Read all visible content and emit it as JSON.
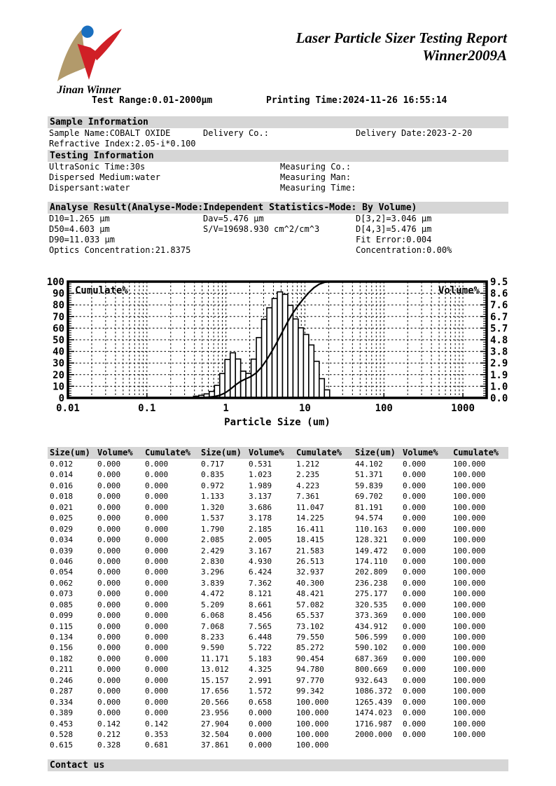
{
  "header": {
    "logo_text": "Jinan Winner",
    "title_line1": "Laser Particle Sizer Testing Report",
    "title_line2": "Winner2009A",
    "test_range": "Test Range:0.01-2000μm",
    "printing_time": "Printing Time:2024-11-26 16:55:14",
    "logo_colors": {
      "tan": "#b29a6b",
      "blue": "#1a6fbf",
      "red": "#d01f26"
    }
  },
  "sample_info": {
    "title": "Sample Information",
    "row1": [
      "Sample Name:COBALT OXIDE",
      "Delivery Co.:",
      "Delivery Date:2023-2-20"
    ],
    "row2": "Refractive Index:2.05-i*0.100"
  },
  "testing_info": {
    "title": "Testing Information",
    "left": [
      "UltraSonic Time:30s",
      "Dispersed Medium:water",
      "Dispersant:water"
    ],
    "right": [
      "Measuring Co.:",
      "Measuring Man:",
      "Measuring Time:"
    ]
  },
  "analyse_result": {
    "title": "Analyse Result(Analyse-Mode:Independent  Statistics-Mode: By Volume)",
    "col1": [
      "D10=1.265 μm",
      "D50=4.603 μm",
      "D90=11.033 μm",
      "Optics Concentration:21.8375"
    ],
    "col2": [
      "Dav=5.476 μm",
      "S/V=19698.930 cm^2/cm^3",
      "",
      ""
    ],
    "col3": [
      "D[3,2]=3.046 μm",
      "D[4,3]=5.476 μm",
      "Fit Error:0.004",
      "Concentration:0.00%"
    ]
  },
  "chart": {
    "left_axis_label": "Cumulate%",
    "right_axis_label": "Volume%",
    "x_axis_label": "Particle Size (um)",
    "left_ticks": [
      "0",
      "10",
      "20",
      "30",
      "40",
      "50",
      "60",
      "70",
      "80",
      "90",
      "100"
    ],
    "right_ticks": [
      "9.5",
      "8.6",
      "7.6",
      "6.7",
      "5.7",
      "4.8",
      "3.8",
      "2.9",
      "1.9",
      "1.0",
      "0.0"
    ],
    "x_ticks": [
      "0.01",
      "0.1",
      "1",
      "10",
      "100",
      "1000"
    ]
  },
  "chart_data": {
    "type": "bar",
    "subtype": "histogram_with_cumulative_line",
    "x_scale": "log",
    "x_range": [
      0.01,
      2000
    ],
    "left_axis": {
      "label": "Cumulate%",
      "range": [
        0,
        100
      ]
    },
    "right_axis": {
      "label": "Volume%",
      "range": [
        0,
        9.5
      ]
    },
    "xlabel": "Particle Size (um)",
    "grid": true,
    "sizes_um": [
      0.012,
      0.014,
      0.016,
      0.018,
      0.021,
      0.025,
      0.029,
      0.034,
      0.039,
      0.046,
      0.054,
      0.062,
      0.073,
      0.085,
      0.099,
      0.115,
      0.134,
      0.156,
      0.182,
      0.211,
      0.246,
      0.287,
      0.334,
      0.389,
      0.453,
      0.528,
      0.615,
      0.717,
      0.835,
      0.972,
      1.133,
      1.32,
      1.537,
      1.79,
      2.085,
      2.429,
      2.83,
      3.296,
      3.839,
      4.472,
      5.209,
      6.068,
      7.068,
      8.233,
      9.59,
      11.171,
      13.012,
      15.157,
      17.656,
      20.566,
      23.956,
      27.904,
      32.504,
      37.861,
      44.102,
      51.371,
      59.839,
      69.702,
      81.191,
      94.574,
      110.163,
      128.321,
      149.472,
      174.11,
      202.809,
      236.238,
      275.177,
      320.535,
      373.369,
      434.912,
      506.599,
      590.102,
      687.369,
      800.669,
      932.643,
      1086.372,
      1265.439,
      1474.023,
      1716.987,
      2000.0
    ],
    "volume_percent": [
      0,
      0,
      0,
      0,
      0,
      0,
      0,
      0,
      0,
      0,
      0,
      0,
      0,
      0,
      0,
      0,
      0,
      0,
      0,
      0,
      0,
      0,
      0,
      0,
      0.142,
      0.212,
      0.328,
      0.531,
      1.023,
      1.989,
      3.137,
      3.686,
      3.178,
      2.185,
      2.005,
      3.167,
      4.93,
      6.424,
      7.362,
      8.121,
      8.661,
      8.456,
      7.565,
      6.448,
      5.722,
      5.183,
      4.325,
      2.991,
      1.572,
      0.658,
      0,
      0,
      0,
      0,
      0,
      0,
      0,
      0,
      0,
      0,
      0,
      0,
      0,
      0,
      0,
      0,
      0,
      0,
      0,
      0,
      0,
      0,
      0,
      0,
      0,
      0,
      0,
      0,
      0,
      0
    ],
    "cumulate_percent": [
      0,
      0,
      0,
      0,
      0,
      0,
      0,
      0,
      0,
      0,
      0,
      0,
      0,
      0,
      0,
      0,
      0,
      0,
      0,
      0,
      0,
      0,
      0,
      0,
      0.142,
      0.353,
      0.681,
      1.212,
      2.235,
      4.223,
      7.361,
      11.047,
      14.225,
      16.411,
      18.415,
      21.583,
      26.513,
      32.937,
      40.3,
      48.421,
      57.082,
      65.537,
      73.102,
      79.55,
      85.272,
      90.454,
      94.78,
      97.77,
      99.342,
      100,
      100,
      100,
      100,
      100,
      100,
      100,
      100,
      100,
      100,
      100,
      100,
      100,
      100,
      100,
      100,
      100,
      100,
      100,
      100,
      100,
      100,
      100,
      100,
      100,
      100,
      100,
      100,
      100,
      100,
      100
    ]
  },
  "table": {
    "headers": [
      "Size(um)",
      "Volume%",
      "Cumulate%",
      "Size(um)",
      "Volume%",
      "Cumulate%",
      "Size(um)",
      "Volume%",
      "Cumulate%"
    ],
    "rows": [
      [
        "0.012",
        "0.000",
        "0.000",
        "0.717",
        "0.531",
        "1.212",
        "44.102",
        "0.000",
        "100.000"
      ],
      [
        "0.014",
        "0.000",
        "0.000",
        "0.835",
        "1.023",
        "2.235",
        "51.371",
        "0.000",
        "100.000"
      ],
      [
        "0.016",
        "0.000",
        "0.000",
        "0.972",
        "1.989",
        "4.223",
        "59.839",
        "0.000",
        "100.000"
      ],
      [
        "0.018",
        "0.000",
        "0.000",
        "1.133",
        "3.137",
        "7.361",
        "69.702",
        "0.000",
        "100.000"
      ],
      [
        "0.021",
        "0.000",
        "0.000",
        "1.320",
        "3.686",
        "11.047",
        "81.191",
        "0.000",
        "100.000"
      ],
      [
        "0.025",
        "0.000",
        "0.000",
        "1.537",
        "3.178",
        "14.225",
        "94.574",
        "0.000",
        "100.000"
      ],
      [
        "0.029",
        "0.000",
        "0.000",
        "1.790",
        "2.185",
        "16.411",
        "110.163",
        "0.000",
        "100.000"
      ],
      [
        "0.034",
        "0.000",
        "0.000",
        "2.085",
        "2.005",
        "18.415",
        "128.321",
        "0.000",
        "100.000"
      ],
      [
        "0.039",
        "0.000",
        "0.000",
        "2.429",
        "3.167",
        "21.583",
        "149.472",
        "0.000",
        "100.000"
      ],
      [
        "0.046",
        "0.000",
        "0.000",
        "2.830",
        "4.930",
        "26.513",
        "174.110",
        "0.000",
        "100.000"
      ],
      [
        "0.054",
        "0.000",
        "0.000",
        "3.296",
        "6.424",
        "32.937",
        "202.809",
        "0.000",
        "100.000"
      ],
      [
        "0.062",
        "0.000",
        "0.000",
        "3.839",
        "7.362",
        "40.300",
        "236.238",
        "0.000",
        "100.000"
      ],
      [
        "0.073",
        "0.000",
        "0.000",
        "4.472",
        "8.121",
        "48.421",
        "275.177",
        "0.000",
        "100.000"
      ],
      [
        "0.085",
        "0.000",
        "0.000",
        "5.209",
        "8.661",
        "57.082",
        "320.535",
        "0.000",
        "100.000"
      ],
      [
        "0.099",
        "0.000",
        "0.000",
        "6.068",
        "8.456",
        "65.537",
        "373.369",
        "0.000",
        "100.000"
      ],
      [
        "0.115",
        "0.000",
        "0.000",
        "7.068",
        "7.565",
        "73.102",
        "434.912",
        "0.000",
        "100.000"
      ],
      [
        "0.134",
        "0.000",
        "0.000",
        "8.233",
        "6.448",
        "79.550",
        "506.599",
        "0.000",
        "100.000"
      ],
      [
        "0.156",
        "0.000",
        "0.000",
        "9.590",
        "5.722",
        "85.272",
        "590.102",
        "0.000",
        "100.000"
      ],
      [
        "0.182",
        "0.000",
        "0.000",
        "11.171",
        "5.183",
        "90.454",
        "687.369",
        "0.000",
        "100.000"
      ],
      [
        "0.211",
        "0.000",
        "0.000",
        "13.012",
        "4.325",
        "94.780",
        "800.669",
        "0.000",
        "100.000"
      ],
      [
        "0.246",
        "0.000",
        "0.000",
        "15.157",
        "2.991",
        "97.770",
        "932.643",
        "0.000",
        "100.000"
      ],
      [
        "0.287",
        "0.000",
        "0.000",
        "17.656",
        "1.572",
        "99.342",
        "1086.372",
        "0.000",
        "100.000"
      ],
      [
        "0.334",
        "0.000",
        "0.000",
        "20.566",
        "0.658",
        "100.000",
        "1265.439",
        "0.000",
        "100.000"
      ],
      [
        "0.389",
        "0.000",
        "0.000",
        "23.956",
        "0.000",
        "100.000",
        "1474.023",
        "0.000",
        "100.000"
      ],
      [
        "0.453",
        "0.142",
        "0.142",
        "27.904",
        "0.000",
        "100.000",
        "1716.987",
        "0.000",
        "100.000"
      ],
      [
        "0.528",
        "0.212",
        "0.353",
        "32.504",
        "0.000",
        "100.000",
        "2000.000",
        "0.000",
        "100.000"
      ],
      [
        "0.615",
        "0.328",
        "0.681",
        "37.861",
        "0.000",
        "100.000",
        "",
        "",
        ""
      ]
    ]
  },
  "footer": {
    "title": "Contact us"
  }
}
